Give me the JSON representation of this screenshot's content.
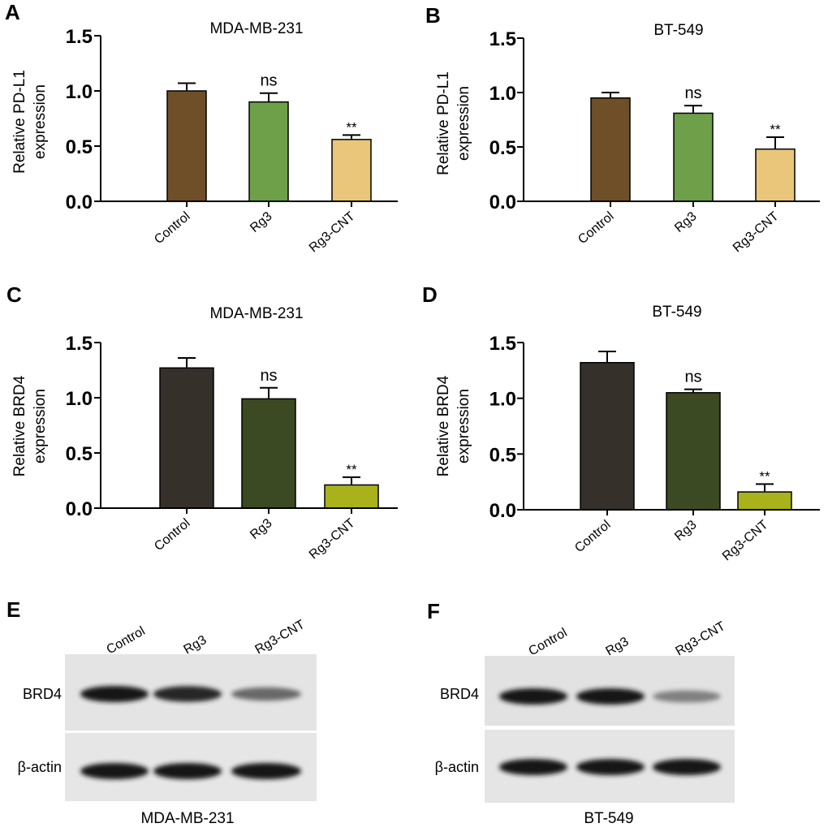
{
  "chart_data": [
    {
      "panel": "A",
      "type": "bar",
      "title": "MDA-MB-231",
      "ylabel": [
        "Relative PD-L1",
        "expression"
      ],
      "categories": [
        "Control",
        "Rg3",
        "Rg3-CNT"
      ],
      "values": [
        1.0,
        0.9,
        0.56
      ],
      "errors": [
        0.07,
        0.08,
        0.04
      ],
      "annotations": [
        "",
        "ns",
        "**"
      ],
      "colors": [
        "#6e4f28",
        "#6ea04a",
        "#eac67a"
      ],
      "ylim": [
        0,
        1.5
      ],
      "yticks": [
        "0.0",
        "0.5",
        "1.0",
        "1.5"
      ]
    },
    {
      "panel": "B",
      "type": "bar",
      "title": "BT-549",
      "ylabel": [
        "Relative PD-L1",
        "expression"
      ],
      "categories": [
        "Control",
        "Rg3",
        "Rg3-CNT"
      ],
      "values": [
        0.95,
        0.81,
        0.48
      ],
      "errors": [
        0.05,
        0.07,
        0.11
      ],
      "annotations": [
        "",
        "ns",
        "**"
      ],
      "colors": [
        "#6e4f28",
        "#6ea04a",
        "#eac67a"
      ],
      "ylim": [
        0,
        1.5
      ],
      "yticks": [
        "0.0",
        "0.5",
        "1.0",
        "1.5"
      ]
    },
    {
      "panel": "C",
      "type": "bar",
      "title": "MDA-MB-231",
      "ylabel": [
        "Relative BRD4",
        "expression"
      ],
      "categories": [
        "Control",
        "Rg3",
        "Rg3-CNT"
      ],
      "values": [
        1.27,
        0.99,
        0.21
      ],
      "errors": [
        0.09,
        0.1,
        0.07
      ],
      "annotations": [
        "",
        "ns",
        "**"
      ],
      "colors": [
        "#36302a",
        "#3b4a22",
        "#a9b21a"
      ],
      "ylim": [
        0,
        1.5
      ],
      "yticks": [
        "0.0",
        "0.5",
        "1.0",
        "1.5"
      ]
    },
    {
      "panel": "D",
      "type": "bar",
      "title": "BT-549",
      "ylabel": [
        "Relative BRD4",
        "expression"
      ],
      "categories": [
        "Control",
        "Rg3",
        "Rg3-CNT"
      ],
      "values": [
        1.32,
        1.05,
        0.16
      ],
      "errors": [
        0.1,
        0.03,
        0.07
      ],
      "annotations": [
        "",
        "ns",
        "**"
      ],
      "colors": [
        "#36302a",
        "#3b4a22",
        "#a9b21a"
      ],
      "ylim": [
        0,
        1.5
      ],
      "yticks": [
        "0.0",
        "0.5",
        "1.0",
        "1.5"
      ]
    }
  ],
  "blots": [
    {
      "panel": "E",
      "caption": "MDA-MB-231",
      "lanes": [
        "Control",
        "Rg3",
        "Rg3-CNT"
      ],
      "rows": [
        {
          "label": "BRD4",
          "intensity": [
            1.0,
            0.95,
            0.6
          ]
        },
        {
          "label": "β-actin",
          "intensity": [
            1.0,
            1.0,
            1.0
          ]
        }
      ]
    },
    {
      "panel": "F",
      "caption": "BT-549",
      "lanes": [
        "Control",
        "Rg3",
        "Rg3-CNT"
      ],
      "rows": [
        {
          "label": "BRD4",
          "intensity": [
            1.0,
            1.0,
            0.45
          ]
        },
        {
          "label": "β-actin",
          "intensity": [
            1.0,
            1.0,
            1.0
          ]
        }
      ]
    }
  ]
}
